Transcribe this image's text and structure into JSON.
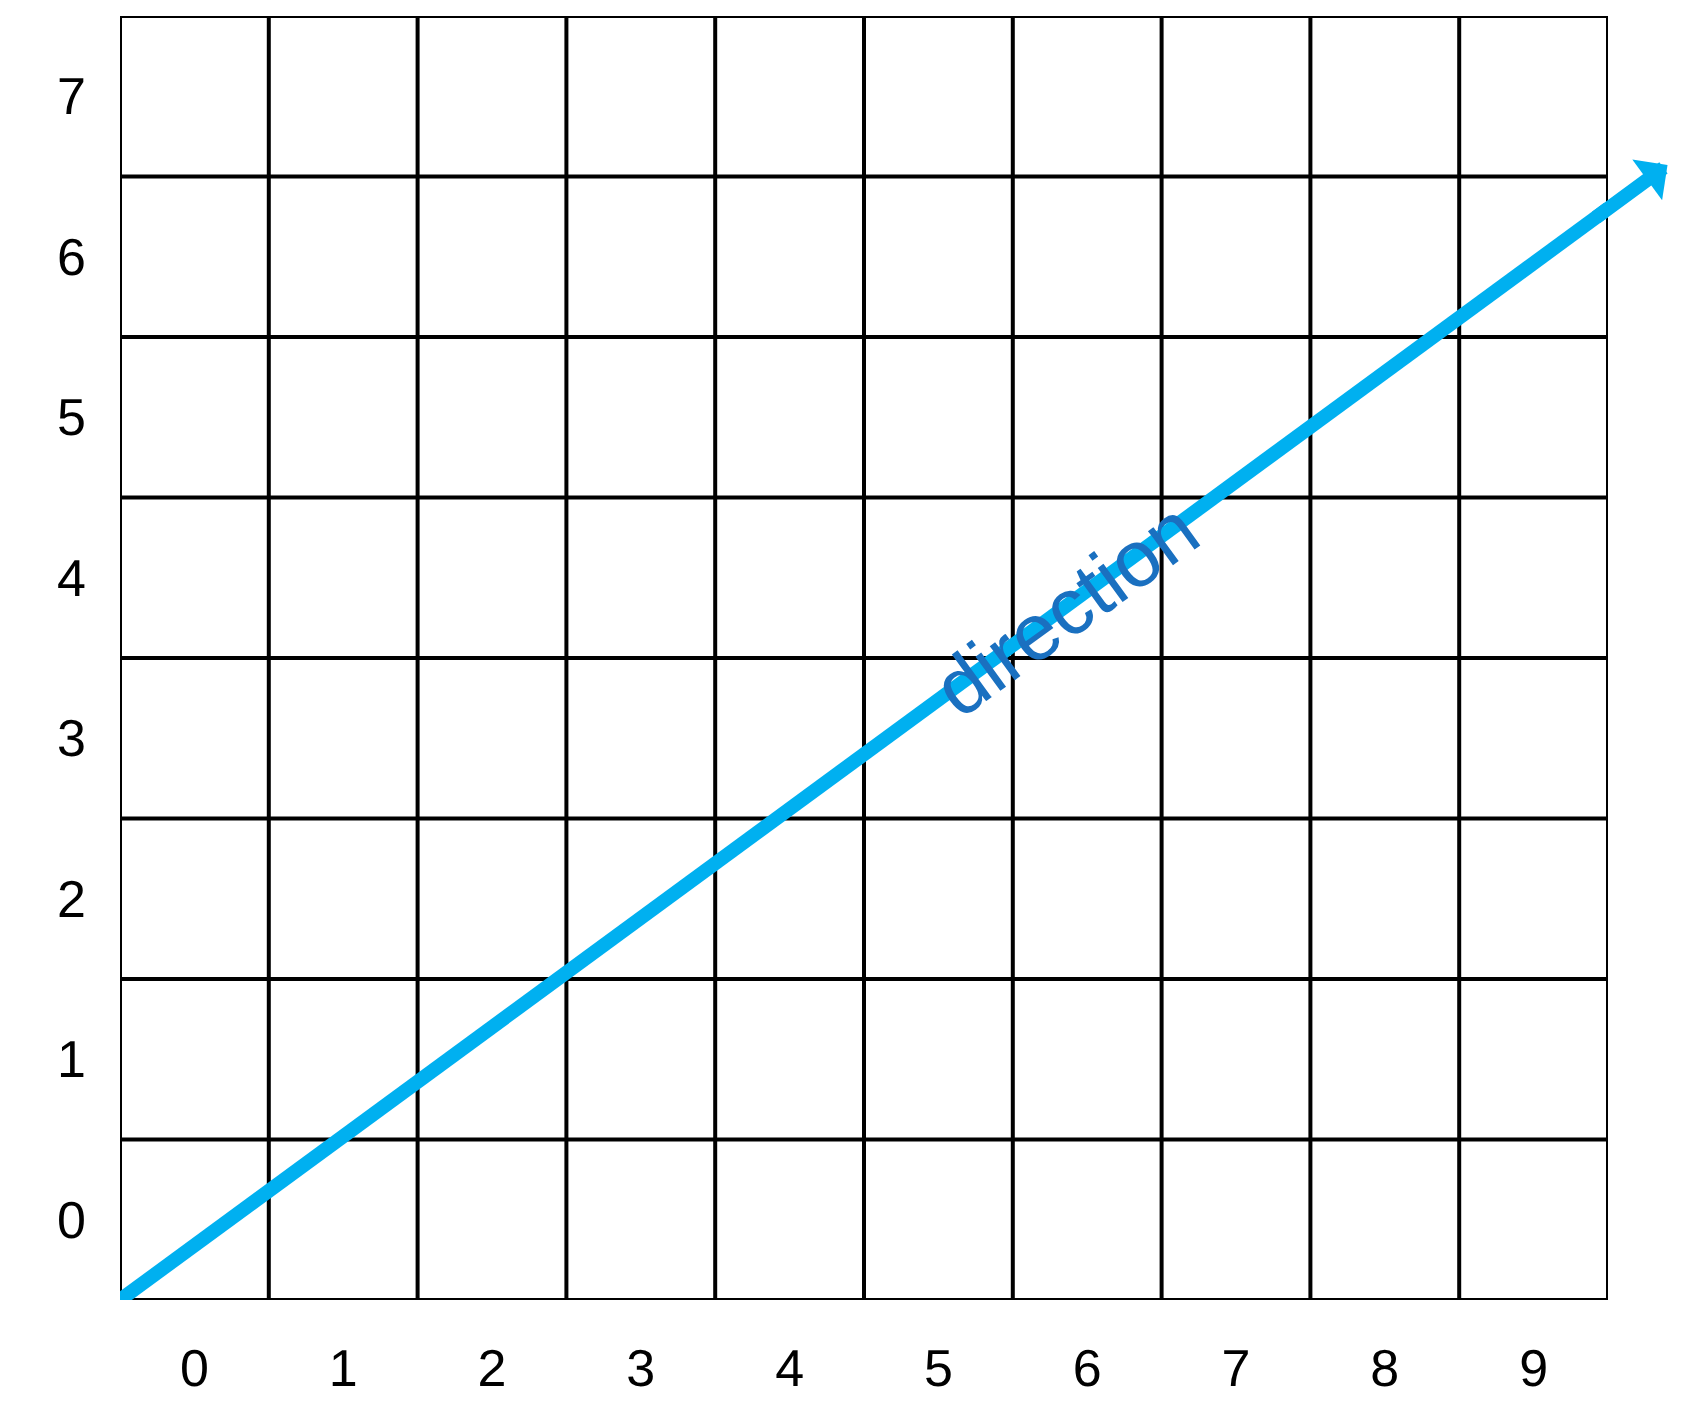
{
  "chart_data": {
    "type": "line",
    "x": [
      -0.5,
      9.5
    ],
    "series": [
      {
        "color": "#00b0f0",
        "values": [
          -0.5,
          6.3
        ]
      }
    ],
    "xlim": [
      -0.5,
      9.5
    ],
    "ylim": [
      -0.5,
      7.5
    ],
    "xticks": [
      {
        "value": -0.5,
        "label": null
      },
      0,
      {
        "value": 0.5,
        "label": null
      },
      1,
      {
        "value": 1.5,
        "label": null
      },
      2,
      {
        "value": 2.5,
        "label": null
      },
      3,
      {
        "value": 3.5,
        "label": null
      },
      4,
      {
        "value": 4.5,
        "label": null
      },
      5,
      {
        "value": 5.5,
        "label": null
      },
      6,
      {
        "value": 6.5,
        "label": null
      },
      7,
      {
        "value": 7.5,
        "label": null
      },
      8,
      {
        "value": 8.5,
        "label": null
      },
      9,
      {
        "value": 9.5,
        "label": null
      }
    ],
    "yticks": [
      {
        "value": -0.5,
        "label": null
      },
      0,
      {
        "value": 0.5,
        "label": null
      },
      1,
      {
        "value": 1.5,
        "label": null
      },
      2,
      {
        "value": 2.5,
        "label": null
      },
      3,
      {
        "value": 3.5,
        "label": null
      },
      4,
      {
        "value": 4.5,
        "label": null
      },
      5,
      {
        "value": 5.5,
        "label": null
      },
      6,
      {
        "value": 6.5,
        "label": null
      },
      7,
      {
        "value": 7.5,
        "label": null
      }
    ],
    "grid": true,
    "annotations": [
      "direction"
    ]
  }
}
